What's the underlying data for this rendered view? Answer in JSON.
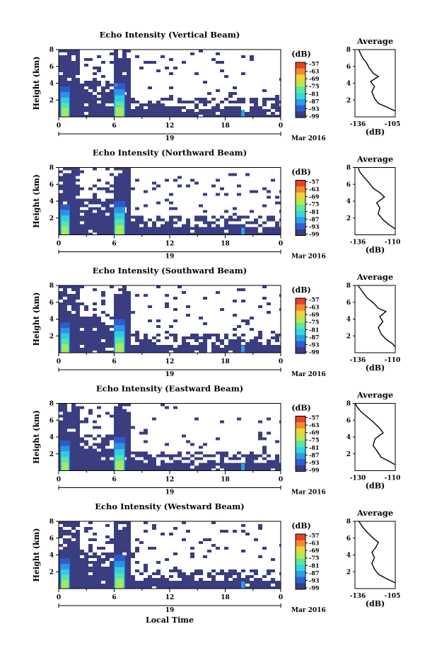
{
  "figure": {
    "x_axis_label": "Local Time",
    "date_label": "Mar 2016",
    "day_label": "19",
    "avg_title": "Average",
    "avg_xlabel": "(dB)",
    "cbar_label": "(dB)",
    "height_label": "Height (km)"
  },
  "chart_data": [
    {
      "type": "heatmap",
      "title": "Echo Intensity (Vertical Beam)",
      "ylabel": "Height (km)",
      "x_ticks": [
        "0",
        "6",
        "12",
        "18",
        "0"
      ],
      "x_minor_ticks": [
        "3",
        "6",
        "9",
        "12",
        "15",
        "18",
        "21",
        "0"
      ],
      "ylim": [
        0,
        8
      ],
      "y_ticks": [
        "2",
        "4",
        "6",
        "8"
      ],
      "colorbar": {
        "label": "(dB)",
        "ticks": [
          "-57",
          "-63",
          "-69",
          "-75",
          "-81",
          "-87",
          "-93",
          "-99"
        ]
      },
      "average_profile": {
        "title": "Average",
        "xlabel": "(dB)",
        "xlim_labels": [
          "-136",
          "-105"
        ],
        "y_ticks": [
          "2",
          "4",
          "6",
          "8"
        ],
        "points": [
          [
            -105,
            0.7
          ],
          [
            -112,
            1.2
          ],
          [
            -118,
            1.6
          ],
          [
            -121,
            2.2
          ],
          [
            -123,
            3.0
          ],
          [
            -121,
            3.6
          ],
          [
            -124,
            4.2
          ],
          [
            -118,
            4.8
          ],
          [
            -122,
            5.2
          ],
          [
            -125,
            5.8
          ],
          [
            -127,
            6.4
          ],
          [
            -130,
            7.0
          ],
          [
            -132,
            7.6
          ],
          [
            -133,
            8.0
          ]
        ]
      }
    },
    {
      "type": "heatmap",
      "title": "Echo Intensity (Northward Beam)",
      "ylabel": "Height (km)",
      "x_ticks": [
        "0",
        "6",
        "12",
        "18",
        "0"
      ],
      "ylim": [
        0,
        8
      ],
      "y_ticks": [
        "2",
        "4",
        "6",
        "8"
      ],
      "colorbar": {
        "label": "(dB)",
        "ticks": [
          "-57",
          "-63",
          "-69",
          "-75",
          "-81",
          "-87",
          "-93",
          "-99"
        ]
      },
      "average_profile": {
        "title": "Average",
        "xlabel": "(dB)",
        "xlim_labels": [
          "-136",
          "-110"
        ],
        "y_ticks": [
          "2",
          "4",
          "6",
          "8"
        ],
        "points": [
          [
            -110,
            0.7
          ],
          [
            -114,
            1.2
          ],
          [
            -118,
            1.8
          ],
          [
            -121,
            2.5
          ],
          [
            -120,
            3.2
          ],
          [
            -122,
            3.8
          ],
          [
            -117,
            4.5
          ],
          [
            -120,
            5.0
          ],
          [
            -124,
            5.5
          ],
          [
            -127,
            6.2
          ],
          [
            -130,
            6.8
          ],
          [
            -133,
            7.5
          ],
          [
            -134,
            8.0
          ]
        ]
      }
    },
    {
      "type": "heatmap",
      "title": "Echo Intensity (Southward Beam)",
      "ylabel": "Height (km)",
      "x_ticks": [
        "0",
        "6",
        "12",
        "18",
        "0"
      ],
      "ylim": [
        0,
        8
      ],
      "y_ticks": [
        "2",
        "4",
        "6",
        "8"
      ],
      "colorbar": {
        "label": "(dB)",
        "ticks": [
          "-57",
          "-63",
          "-69",
          "-75",
          "-81",
          "-87",
          "-93",
          "-99"
        ]
      },
      "average_profile": {
        "title": "Average",
        "xlabel": "(dB)",
        "xlim_labels": [
          "-136",
          "-110"
        ],
        "y_ticks": [
          "2",
          "4",
          "6",
          "8"
        ],
        "points": [
          [
            -110,
            0.7
          ],
          [
            -112,
            1.1
          ],
          [
            -116,
            1.6
          ],
          [
            -119,
            2.2
          ],
          [
            -121,
            3.0
          ],
          [
            -118,
            3.7
          ],
          [
            -120,
            4.3
          ],
          [
            -116,
            4.9
          ],
          [
            -121,
            5.3
          ],
          [
            -124,
            5.9
          ],
          [
            -128,
            6.5
          ],
          [
            -131,
            7.2
          ],
          [
            -134,
            8.0
          ]
        ]
      }
    },
    {
      "type": "heatmap",
      "title": "Echo Intensity (Eastward Beam)",
      "ylabel": "Height (km)",
      "x_ticks": [
        "0",
        "6",
        "12",
        "18",
        "0"
      ],
      "ylim": [
        0,
        8
      ],
      "y_ticks": [
        "2",
        "4",
        "6",
        "8"
      ],
      "colorbar": {
        "label": "(dB)",
        "ticks": [
          "-57",
          "-63",
          "-69",
          "-75",
          "-81",
          "-87",
          "-93",
          "-99"
        ]
      },
      "average_profile": {
        "title": "Average",
        "xlabel": "(dB)",
        "xlim_labels": [
          "-130",
          "-110"
        ],
        "y_ticks": [
          "2",
          "4",
          "6",
          "8"
        ],
        "points": [
          [
            -110,
            0.7
          ],
          [
            -113,
            1.1
          ],
          [
            -117,
            1.6
          ],
          [
            -119,
            2.3
          ],
          [
            -121,
            3.0
          ],
          [
            -120,
            3.8
          ],
          [
            -116,
            4.5
          ],
          [
            -118,
            5.1
          ],
          [
            -121,
            5.8
          ],
          [
            -124,
            6.4
          ],
          [
            -127,
            7.0
          ],
          [
            -129,
            7.6
          ],
          [
            -130,
            8.0
          ]
        ]
      }
    },
    {
      "type": "heatmap",
      "title": "Echo Intensity (Westward Beam)",
      "ylabel": "Height (km)",
      "x_ticks": [
        "0",
        "6",
        "12",
        "18",
        "0"
      ],
      "ylim": [
        0,
        8
      ],
      "y_ticks": [
        "2",
        "4",
        "6",
        "8"
      ],
      "colorbar": {
        "label": "(dB)",
        "ticks": [
          "-57",
          "-63",
          "-69",
          "-75",
          "-81",
          "-87",
          "-93",
          "-99"
        ]
      },
      "average_profile": {
        "title": "Average",
        "xlabel": "(dB)",
        "xlim_labels": [
          "-136",
          "-105"
        ],
        "y_ticks": [
          "2",
          "4",
          "6",
          "8"
        ],
        "points": [
          [
            -105,
            0.7
          ],
          [
            -112,
            1.2
          ],
          [
            -118,
            1.7
          ],
          [
            -121,
            2.3
          ],
          [
            -123,
            3.0
          ],
          [
            -121,
            3.7
          ],
          [
            -123,
            4.3
          ],
          [
            -120,
            4.9
          ],
          [
            -118,
            5.5
          ],
          [
            -122,
            6.0
          ],
          [
            -126,
            6.6
          ],
          [
            -130,
            7.3
          ],
          [
            -133,
            8.0
          ]
        ]
      }
    }
  ],
  "colors": {
    "background": "#3a3d80",
    "scale": [
      "#3a3d80",
      "#2f5fd6",
      "#2a9fe6",
      "#33d6e0",
      "#5ee6a0",
      "#b6ea4a",
      "#f2d23a",
      "#f58a2c",
      "#e8402a"
    ]
  }
}
